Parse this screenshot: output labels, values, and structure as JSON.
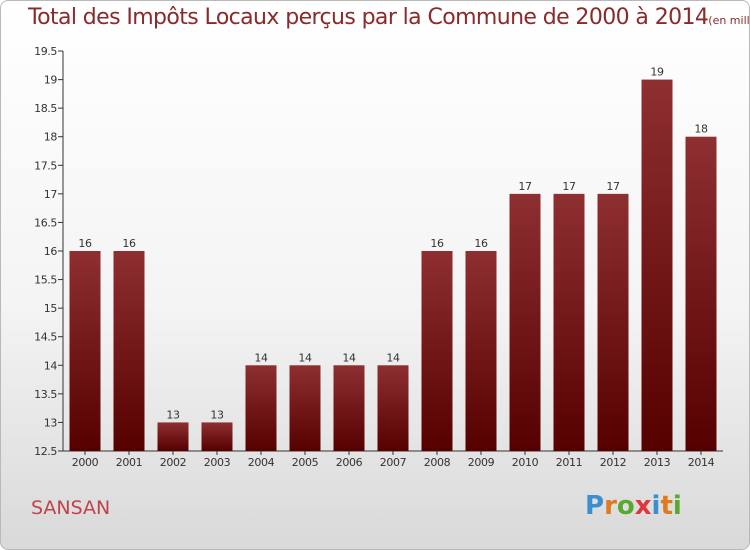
{
  "chart_data": {
    "type": "bar",
    "title": "Total des Impôts Locaux perçus par la Commune de 2000 à 2014",
    "subtitle": "(en milliers d'€)",
    "categories": [
      "2000",
      "2001",
      "2002",
      "2003",
      "2004",
      "2005",
      "2006",
      "2007",
      "2008",
      "2009",
      "2010",
      "2011",
      "2012",
      "2013",
      "2014"
    ],
    "values": [
      16,
      16,
      13,
      13,
      14,
      14,
      14,
      14,
      16,
      16,
      17,
      17,
      17,
      19,
      18
    ],
    "data_labels": [
      "16",
      "16",
      "13",
      "13",
      "14",
      "14",
      "14",
      "14",
      "16",
      "16",
      "17",
      "17",
      "17",
      "19",
      "18"
    ],
    "ylim": [
      12.5,
      19.5
    ],
    "yticks": [
      12.5,
      13,
      13.5,
      14,
      14.5,
      15,
      15.5,
      16,
      16.5,
      17,
      17.5,
      18,
      18.5,
      19,
      19.5
    ],
    "ytick_labels": [
      "12.5",
      "13",
      "13.5",
      "14",
      "14.5",
      "15",
      "15.5",
      "16",
      "16.5",
      "17",
      "17.5",
      "18",
      "18.5",
      "19",
      "19.5"
    ],
    "xlabel": "",
    "ylabel": "",
    "grid": false,
    "bar_color": "#7a1a1a"
  },
  "commune": "SANSAN",
  "logo": {
    "letters": [
      "P",
      "r",
      "o",
      "x",
      "i",
      "t",
      "i"
    ],
    "colors": [
      "#3a8fd0",
      "#e07a1f",
      "#59a92f",
      "#e0353a",
      "#3a8fd0",
      "#e07a1f",
      "#59a92f"
    ]
  }
}
